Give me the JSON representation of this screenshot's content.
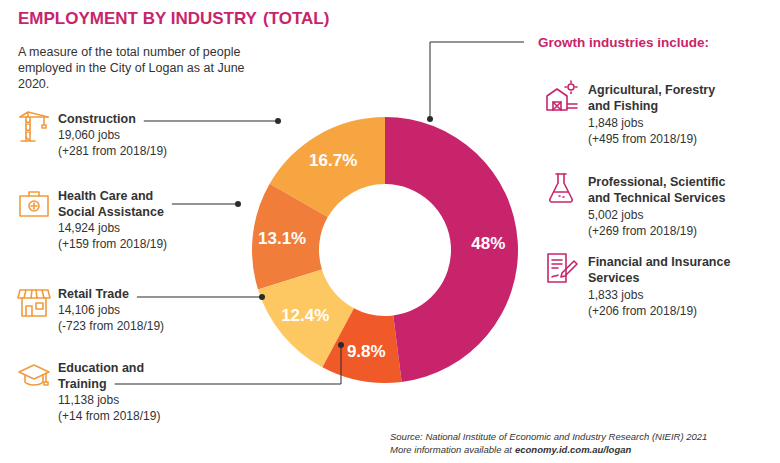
{
  "chart_data": {
    "type": "donut",
    "title": "EMPLOYMENT BY INDUSTRY",
    "title_suffix": "(TOTAL)",
    "subtitle": "A measure of the total number of people employed in the City of Logan as at June 2020.",
    "categories": [
      "Construction",
      "Health Care and Social Assistance",
      "Retail Trade",
      "Education and Training",
      null
    ],
    "values": [
      16.7,
      13.1,
      12.4,
      9.8,
      48
    ],
    "value_labels": [
      "16.7%",
      "13.1%",
      "12.4%",
      "9.8%",
      "48%"
    ],
    "colors": [
      "#f7a541",
      "#f07d3a",
      "#fdc762",
      "#f05a28",
      "#c8246c"
    ],
    "data_labels": true,
    "jobs": [
      "19,060 jobs",
      "14,924 jobs",
      "14,106 jobs",
      "11,138 jobs",
      null
    ],
    "changes": [
      "(+281 from 2018/19)",
      "(+159 from 2018/19)",
      "(-723 from 2018/19)",
      "(+14 from 2018/19)",
      null
    ],
    "growth_heading": "Growth industries include:",
    "growth_industries": [
      {
        "name": "Agricultural, Forestry and Fishing",
        "jobs": "1,848 jobs",
        "change": "(+495 from 2018/19)"
      },
      {
        "name": "Professional, Scientific and Technical Services",
        "jobs": "5,002 jobs",
        "change": "(+269 from 2018/19)"
      },
      {
        "name": "Financial and Insurance Services",
        "jobs": "1,833 jobs",
        "change": "(+206 from 2018/19)"
      }
    ],
    "source": "Source: National Institute of Economic and Industry Research (NIEIR) 2021",
    "more_info": "More information available at",
    "link": "economy.id.com.au/logan"
  }
}
